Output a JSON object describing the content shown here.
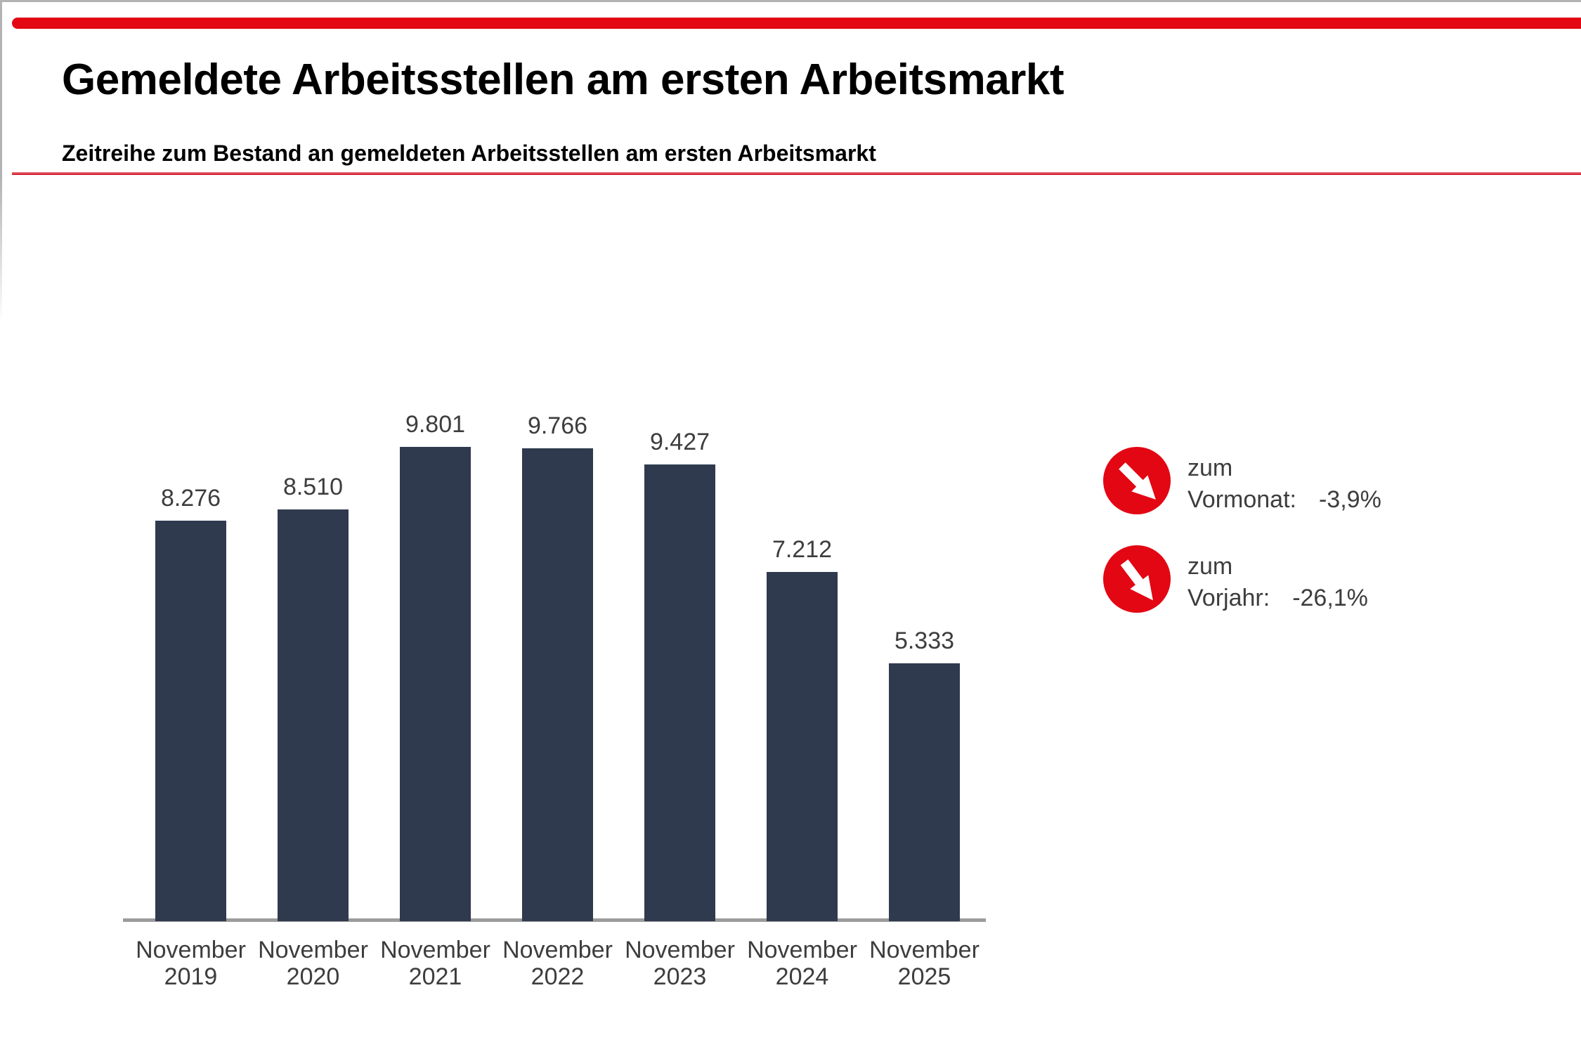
{
  "page": {
    "title": "Gemeldete Arbeitsstellen am ersten Arbeitsmarkt",
    "subtitle": "Zeitreihe zum Bestand an gemeldeten Arbeitsstellen am ersten Arbeitsmarkt"
  },
  "colors": {
    "accent_red": "#e30613",
    "bar_navy": "#2f3a4e",
    "axis_gray": "#9c9c9c",
    "text_dark": "#3d3d3d"
  },
  "chart_data": {
    "type": "bar",
    "categories": [
      "November 2019",
      "November 2020",
      "November 2021",
      "November 2022",
      "November 2023",
      "November 2024",
      "November 2025"
    ],
    "category_line1": [
      "November",
      "November",
      "November",
      "November",
      "November",
      "November",
      "November"
    ],
    "category_line2": [
      "2019",
      "2020",
      "2021",
      "2022",
      "2023",
      "2024",
      "2025"
    ],
    "values": [
      8276,
      8510,
      9801,
      9766,
      9427,
      7212,
      5333
    ],
    "value_labels": [
      "8.276",
      "8.510",
      "9.801",
      "9.766",
      "9.427",
      "7.212",
      "5.333"
    ],
    "title": "",
    "xlabel": "",
    "ylabel": "",
    "ylim": [
      0,
      10000
    ],
    "grid": false,
    "legend": "none",
    "bar_color": "#2f3a4e"
  },
  "kpis": [
    {
      "icon": "arrow-down-right-icon",
      "label_line1": "zum",
      "label_line2": "Vormonat:",
      "value": "-3,9%"
    },
    {
      "icon": "arrow-down-right-icon",
      "label_line1": "zum",
      "label_line2": "Vorjahr:",
      "value": "-26,1%"
    }
  ]
}
